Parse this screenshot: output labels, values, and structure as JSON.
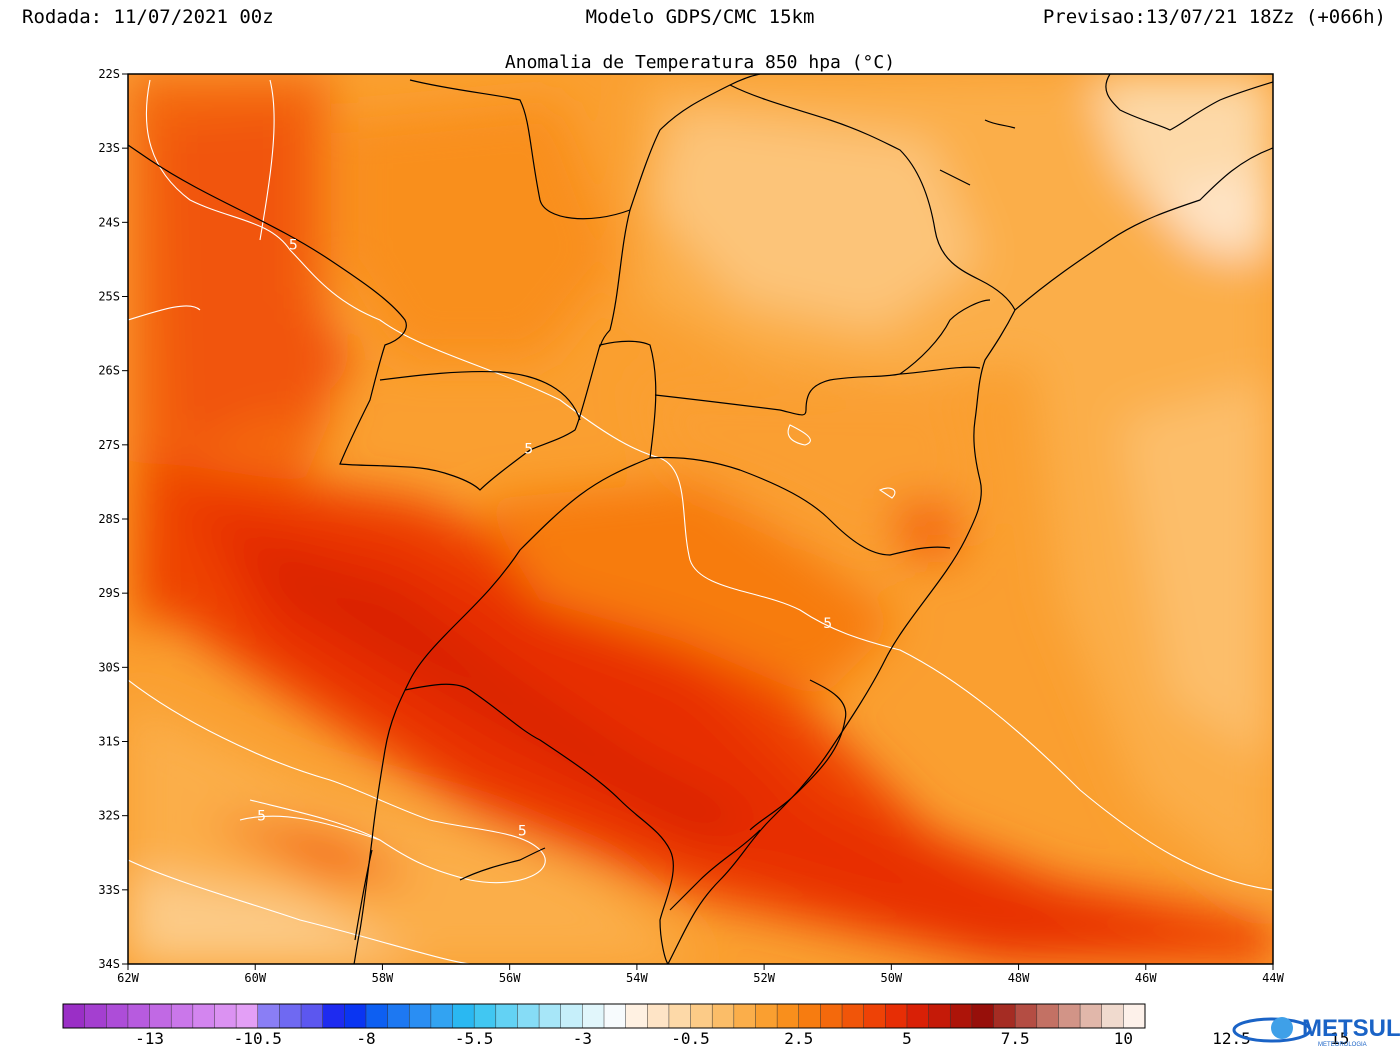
{
  "header": {
    "run": "Rodada: 11/07/2021 00z",
    "model": "Modelo GDPS/CMC 15km",
    "forecast": "Previsao:13/07/21 18Zz (+066h)"
  },
  "title": "Anomalia de Temperatura 850 hpa (°C)",
  "map_extent": {
    "lon": [
      -62,
      -44
    ],
    "lat": [
      -34,
      -22
    ]
  },
  "axes": {
    "lat_labels": [
      "22S",
      "23S",
      "24S",
      "25S",
      "26S",
      "27S",
      "28S",
      "29S",
      "30S",
      "31S",
      "32S",
      "33S",
      "34S"
    ],
    "lon_labels": [
      "62W",
      "60W",
      "58W",
      "56W",
      "54W",
      "52W",
      "50W",
      "48W",
      "46W",
      "44W"
    ]
  },
  "contour_labels": [
    {
      "text": "5",
      "lon": -59.4,
      "lat": -24.3
    },
    {
      "text": "5",
      "lon": -55.7,
      "lat": -27.05
    },
    {
      "text": "5",
      "lon": -51.0,
      "lat": -29.4
    },
    {
      "text": "5",
      "lon": -59.9,
      "lat": -32.0
    },
    {
      "text": "5",
      "lon": -55.8,
      "lat": -32.2
    }
  ],
  "colorbar": {
    "labels": [
      "-13",
      "-10.5",
      "-8",
      "-5.5",
      "-3",
      "-0.5",
      "2.5",
      "5",
      "7.5",
      "10",
      "12.5",
      "15"
    ],
    "colors": [
      "#9a2fc6",
      "#a43fd0",
      "#ad4dd8",
      "#b75bdf",
      "#c169e4",
      "#ca77ea",
      "#d385ef",
      "#db92f2",
      "#e39ff6",
      "#8a7ef5",
      "#6f69f2",
      "#5c57ef",
      "#1e2bf0",
      "#0a35f2",
      "#0d5ff2",
      "#1d78f2",
      "#2a8ef3",
      "#32a3f2",
      "#2ab8f2",
      "#41c7f2",
      "#63d2f4",
      "#86dcf6",
      "#a7e6f8",
      "#c6effa",
      "#e1f6fb",
      "#f7fbfd",
      "#fff1e2",
      "#fee4c6",
      "#fdd9a8",
      "#fccb87",
      "#fbbd68",
      "#fbae4a",
      "#fa9f30",
      "#f98f1c",
      "#f77c10",
      "#f4690c",
      "#f15509",
      "#ee4206",
      "#e72e05",
      "#d92006",
      "#c51a08",
      "#ad1409",
      "#970f0a",
      "#a52c23",
      "#b44d43",
      "#c37164",
      "#d29487",
      "#e1b7aa",
      "#f0dace",
      "#fdf1ea"
    ]
  },
  "logo": {
    "text": "METSUL",
    "subtext": "METEOROLOGIA"
  }
}
